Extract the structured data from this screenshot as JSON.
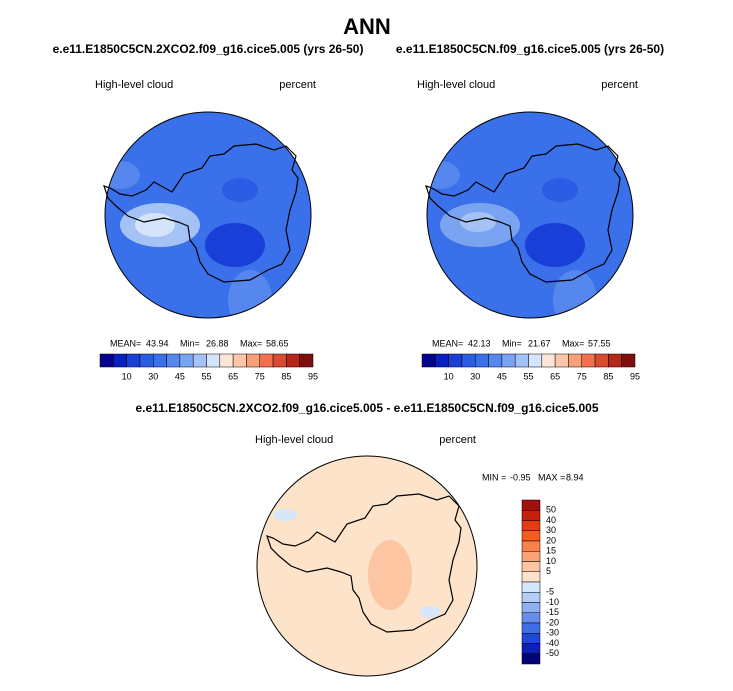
{
  "title": "ANN",
  "panels": [
    {
      "case": "e.e11.E1850C5CN.2XCO2.f09_g16.cice5.005 (yrs 26-50)",
      "variable": "High-level cloud",
      "units": "percent",
      "stats": [
        {
          "label": "MEAN=",
          "value": 43.94
        },
        {
          "label": "Min=",
          "value": 26.88
        },
        {
          "label": "Max=",
          "value": 58.65
        }
      ]
    },
    {
      "case": "e.e11.E1850C5CN.f09_g16.cice5.005 (yrs 26-50)",
      "variable": "High-level cloud",
      "units": "percent",
      "stats": [
        {
          "label": "MEAN=",
          "value": 42.13
        },
        {
          "label": "Min=",
          "value": 21.67
        },
        {
          "label": "Max=",
          "value": 57.55
        }
      ]
    }
  ],
  "colorbar": {
    "colors": [
      "#05058c",
      "#0a1fbf",
      "#1a3fd9",
      "#2a5ce6",
      "#3a70ea",
      "#5687ee",
      "#7aa3f2",
      "#a4c2f6",
      "#d4e4fb",
      "#fde6d8",
      "#fcc6aa",
      "#f9a07b",
      "#f0704f",
      "#d94a30",
      "#b5261b",
      "#800d0d"
    ],
    "ticks": [
      10,
      30,
      45,
      55,
      65,
      75,
      85,
      95
    ]
  },
  "difference": {
    "title": "e.e11.E1850C5CN.2XCO2.f09_g16.cice5.005 - e.e11.E1850C5CN.f09_g16.cice5.005",
    "variable": "High-level cloud",
    "units": "percent",
    "stats": [
      {
        "label": "MIN =",
        "value": -0.95
      },
      {
        "label": "MAX =",
        "value": 8.94
      }
    ],
    "colorbar": {
      "colors": [
        "#a10f0f",
        "#c8200f",
        "#e63a10",
        "#f55a20",
        "#f9804a",
        "#fca276",
        "#fdc5a2",
        "#fde3ca",
        "#d6e6fb",
        "#b3cdf6",
        "#8eb0f1",
        "#678eeb",
        "#3f6ee6",
        "#2147d6",
        "#0c20b3",
        "#03037a"
      ],
      "ticks": [
        50,
        40,
        30,
        20,
        15,
        10,
        5,
        -5,
        -10,
        -15,
        -20,
        -30,
        -40,
        -50
      ]
    }
  }
}
